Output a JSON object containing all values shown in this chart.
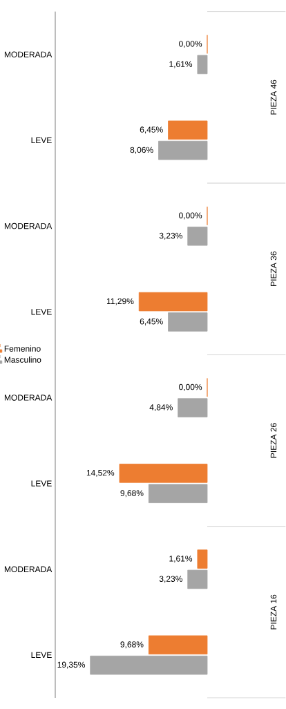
{
  "chart_data": {
    "type": "bar",
    "orientation": "horizontal",
    "categories": [
      "MODERADA",
      "LEVE",
      "MODERADA",
      "LEVE",
      "MODERADA",
      "LEVE",
      "MODERADA",
      "LEVE"
    ],
    "series": [
      {
        "name": "Femenino",
        "color": "#ed7d31",
        "values": [
          0,
          6.45,
          0,
          11.29,
          0,
          14.52,
          1.61,
          9.68
        ],
        "value_labels": [
          "0,00%",
          "6,45%",
          "0,00%",
          "11,29%",
          "0,00%",
          "14,52%",
          "1,61%",
          "9,68%"
        ]
      },
      {
        "name": "Masculino",
        "color": "#a5a5a5",
        "values": [
          1.61,
          8.06,
          3.23,
          6.45,
          4.84,
          9.68,
          3.23,
          19.35
        ],
        "value_labels": [
          "1,61%",
          "8,06%",
          "3,23%",
          "6,45%",
          "4,84%",
          "9,68%",
          "3,23%",
          "19,35%"
        ]
      }
    ],
    "annotations": [
      "PIEZA 46",
      "PIEZA 36",
      "PIEZA 26",
      "PIEZA 16"
    ],
    "legend": "left"
  }
}
